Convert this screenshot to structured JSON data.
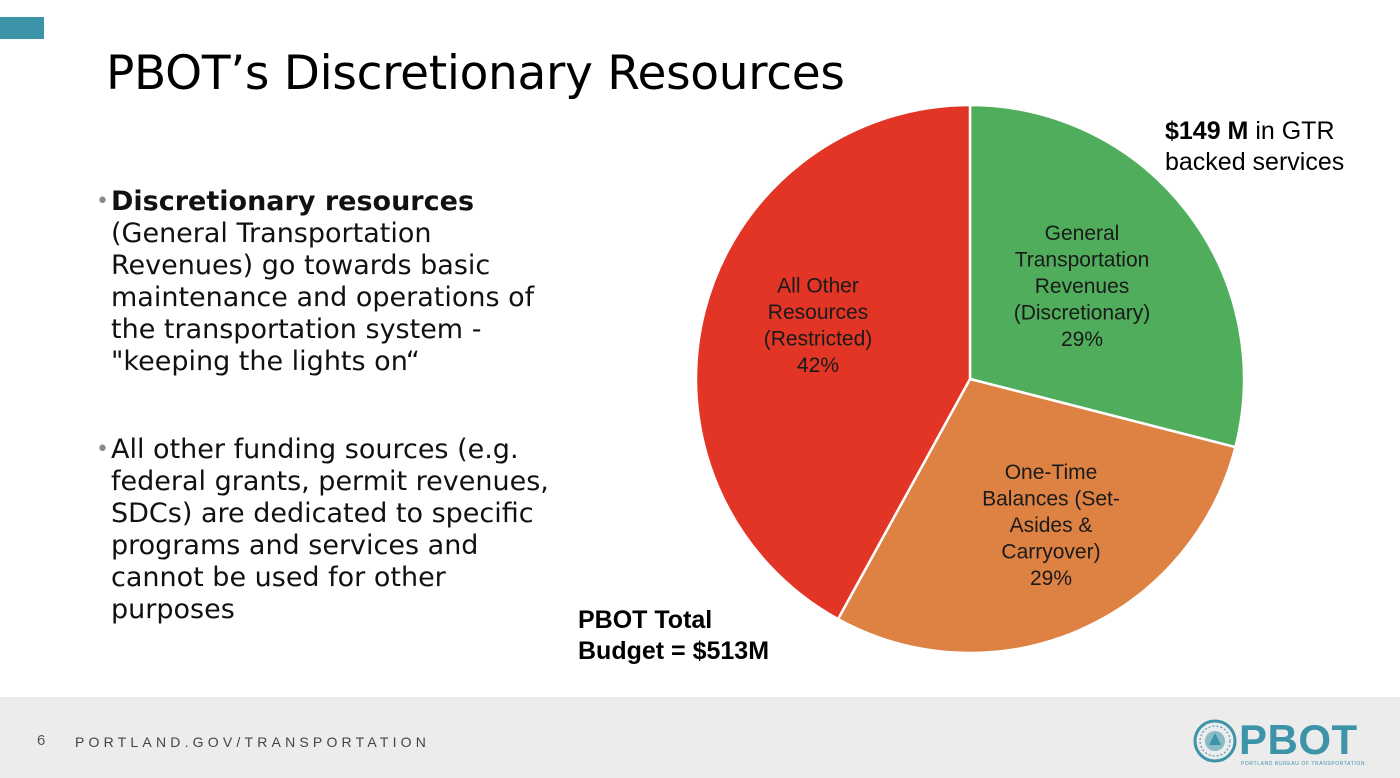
{
  "slide": {
    "title": "PBOT’s Discretionary Resources",
    "accent_color": "#3d94a8"
  },
  "bullets": [
    {
      "bold": "Discretionary resources",
      "text": "(General Transportation Revenues) go towards basic maintenance and operations of the transportation system - \"keeping the lights on“"
    },
    {
      "bold": "",
      "text": "All other funding sources (e.g. federal grants, permit revenues, SDCs) are dedicated to specific programs and services and cannot be used for other purposes"
    }
  ],
  "annotations": {
    "gtr_amount": "$149 M",
    "gtr_line1_rest": " in GTR",
    "gtr_line2": "backed services",
    "total_line1": "PBOT Total",
    "total_line2": "Budget = $513M"
  },
  "chart_data": {
    "type": "pie",
    "title": "",
    "slices": [
      {
        "label_lines": [
          "General",
          "Transportation",
          "Revenues",
          "(Discretionary)",
          "29%"
        ],
        "value": 29,
        "color": "#4fad5b"
      },
      {
        "label_lines": [
          "One-Time",
          "Balances (Set-",
          "Asides &",
          "Carryover)",
          "29%"
        ],
        "value": 29,
        "color": "#de8244"
      },
      {
        "label_lines": [
          "All Other",
          "Resources",
          "(Restricted)",
          "42%"
        ],
        "value": 42,
        "color": "#e33525"
      }
    ],
    "start_angle_deg": 0,
    "direction": "clockwise",
    "legend": "none"
  },
  "footer": {
    "page_number": "6",
    "url": "PORTLAND.GOV/TRANSPORTATION",
    "logo_text": "PBOT",
    "logo_subtext": "PORTLAND BUREAU OF TRANSPORTATION"
  }
}
